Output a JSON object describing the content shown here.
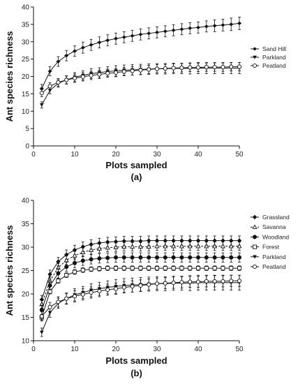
{
  "chart_data": [
    {
      "type": "line",
      "panel_label": "(a)",
      "xlabel": "Plots sampled",
      "ylabel": "Ant species richness",
      "xlim": [
        0,
        50
      ],
      "ylim": [
        0,
        40
      ],
      "xticks": [
        0,
        10,
        20,
        30,
        40,
        50
      ],
      "yticks": [
        0,
        5,
        10,
        15,
        20,
        25,
        30,
        35,
        40
      ],
      "grid": false,
      "legend_position": "right",
      "x": [
        2,
        4,
        6,
        8,
        10,
        12,
        14,
        16,
        18,
        20,
        22,
        24,
        26,
        28,
        30,
        32,
        34,
        36,
        38,
        40,
        42,
        44,
        46,
        48,
        50
      ],
      "series": [
        {
          "name": "Sand Hill",
          "marker": "star",
          "dash": "solid",
          "values": [
            16.5,
            21.5,
            24.3,
            26.0,
            27.3,
            28.3,
            29.1,
            29.8,
            30.4,
            30.9,
            31.3,
            31.7,
            32.1,
            32.4,
            32.7,
            33.0,
            33.3,
            33.6,
            33.9,
            34.1,
            34.4,
            34.6,
            34.8,
            35.0,
            35.3
          ],
          "err": [
            1.2,
            1.3,
            1.4,
            1.5,
            1.5,
            1.6,
            1.6,
            1.6,
            1.6,
            1.6,
            1.6,
            1.6,
            1.6,
            1.6,
            1.6,
            1.6,
            1.6,
            1.6,
            1.6,
            1.6,
            1.6,
            1.7,
            1.7,
            1.8,
            1.8
          ]
        },
        {
          "name": "Parkland",
          "marker": "triangle-down",
          "dash": "solid",
          "values": [
            11.8,
            16.0,
            18.0,
            19.0,
            19.8,
            20.3,
            20.8,
            21.1,
            21.4,
            21.6,
            21.8,
            21.9,
            22.0,
            22.1,
            22.2,
            22.2,
            22.3,
            22.3,
            22.3,
            22.4,
            22.4,
            22.4,
            22.4,
            22.4,
            22.4
          ],
          "err": [
            0.9,
            1.0,
            1.1,
            1.2,
            1.3,
            1.3,
            1.4,
            1.4,
            1.4,
            1.5,
            1.5,
            1.5,
            1.5,
            1.5,
            1.5,
            1.5,
            1.5,
            1.5,
            1.6,
            1.6,
            1.6,
            1.6,
            1.6,
            1.6,
            1.6
          ]
        },
        {
          "name": "Peatland",
          "marker": "circle-open",
          "dash": "solid",
          "values": [
            15.2,
            17.2,
            18.3,
            19.0,
            19.5,
            19.9,
            20.3,
            20.6,
            20.9,
            21.1,
            21.4,
            21.6,
            21.8,
            22.0,
            22.2,
            22.3,
            22.4,
            22.5,
            22.6,
            22.6,
            22.7,
            22.7,
            22.7,
            22.8,
            22.8
          ],
          "err": [
            1.0,
            1.0,
            1.1,
            1.1,
            1.2,
            1.2,
            1.2,
            1.2,
            1.2,
            1.2,
            1.2,
            1.2,
            1.2,
            1.2,
            1.2,
            1.2,
            1.2,
            1.2,
            1.2,
            1.2,
            1.2,
            1.2,
            1.2,
            1.2,
            1.2
          ]
        }
      ]
    },
    {
      "type": "line",
      "panel_label": "(b)",
      "xlabel": "Plots sampled",
      "ylabel": "Ant species richness",
      "xlim": [
        0,
        50
      ],
      "ylim": [
        10,
        40
      ],
      "xticks": [
        0,
        10,
        20,
        30,
        40,
        50
      ],
      "yticks": [
        10,
        15,
        20,
        25,
        30,
        35,
        40
      ],
      "grid": false,
      "legend_position": "right",
      "x": [
        2,
        4,
        6,
        8,
        10,
        12,
        14,
        16,
        18,
        20,
        22,
        24,
        26,
        28,
        30,
        32,
        34,
        36,
        38,
        40,
        42,
        44,
        46,
        48,
        50
      ],
      "series": [
        {
          "name": "Grassland",
          "marker": "diamond",
          "dash": "solid",
          "values": [
            18.8,
            24.2,
            26.9,
            28.4,
            29.4,
            30.1,
            30.6,
            30.9,
            31.1,
            31.2,
            31.3,
            31.3,
            31.3,
            31.4,
            31.4,
            31.4,
            31.4,
            31.4,
            31.4,
            31.4,
            31.4,
            31.4,
            31.4,
            31.4,
            31.4
          ],
          "err": [
            0.9,
            0.9,
            0.9,
            1.0,
            1.0,
            1.0,
            1.0,
            1.0,
            1.0,
            1.0,
            1.0,
            1.0,
            1.0,
            1.0,
            1.0,
            1.0,
            1.0,
            1.0,
            1.0,
            1.0,
            1.0,
            1.0,
            1.0,
            1.0,
            1.0
          ]
        },
        {
          "name": "Savanna",
          "marker": "triangle-open",
          "dash": "dashed",
          "values": [
            17.8,
            22.8,
            25.6,
            27.2,
            28.2,
            28.9,
            29.4,
            29.7,
            29.9,
            30.0,
            30.1,
            30.1,
            30.1,
            30.1,
            30.2,
            30.2,
            30.2,
            30.2,
            30.2,
            30.2,
            30.2,
            30.2,
            30.2,
            30.2,
            30.2
          ],
          "err": [
            0.9,
            0.9,
            0.9,
            0.9,
            0.9,
            0.9,
            0.9,
            0.9,
            0.9,
            0.9,
            0.9,
            0.9,
            0.9,
            0.9,
            0.9,
            0.9,
            0.9,
            0.9,
            0.9,
            0.9,
            0.9,
            0.9,
            0.9,
            0.9,
            0.9
          ]
        },
        {
          "name": "Woodland",
          "marker": "circle-filled",
          "dash": "solid",
          "values": [
            16.6,
            21.8,
            24.4,
            25.8,
            26.6,
            27.1,
            27.4,
            27.6,
            27.7,
            27.8,
            27.8,
            27.8,
            27.8,
            27.8,
            27.8,
            27.8,
            27.8,
            27.8,
            27.8,
            27.8,
            27.8,
            27.8,
            27.8,
            27.8,
            27.8
          ],
          "err": [
            1.0,
            1.0,
            1.0,
            1.0,
            1.0,
            1.0,
            1.0,
            1.0,
            1.0,
            1.0,
            1.0,
            1.0,
            1.0,
            1.0,
            1.0,
            1.0,
            1.0,
            1.0,
            1.0,
            1.0,
            1.0,
            1.0,
            1.0,
            1.0,
            1.0
          ]
        },
        {
          "name": "Forest",
          "marker": "square-open",
          "dash": "solid",
          "values": [
            15.0,
            20.5,
            22.8,
            24.0,
            24.7,
            25.1,
            25.3,
            25.4,
            25.5,
            25.5,
            25.5,
            25.5,
            25.5,
            25.5,
            25.5,
            25.5,
            25.5,
            25.5,
            25.5,
            25.5,
            25.5,
            25.5,
            25.5,
            25.5,
            25.5
          ],
          "err": [
            0.6,
            0.5,
            0.5,
            0.5,
            0.5,
            0.5,
            0.5,
            0.5,
            0.5,
            0.5,
            0.5,
            0.5,
            0.5,
            0.5,
            0.5,
            0.5,
            0.5,
            0.5,
            0.5,
            0.5,
            0.5,
            0.5,
            0.5,
            0.5,
            0.5
          ]
        },
        {
          "name": "Parkland",
          "marker": "triangle-down",
          "dash": "solid",
          "values": [
            11.8,
            16.0,
            18.0,
            19.0,
            19.8,
            20.3,
            20.8,
            21.1,
            21.4,
            21.6,
            21.8,
            21.9,
            22.0,
            22.1,
            22.2,
            22.2,
            22.3,
            22.3,
            22.3,
            22.4,
            22.4,
            22.4,
            22.4,
            22.4,
            22.4
          ],
          "err": [
            0.9,
            1.0,
            1.1,
            1.2,
            1.3,
            1.3,
            1.4,
            1.4,
            1.4,
            1.5,
            1.5,
            1.5,
            1.5,
            1.5,
            1.5,
            1.5,
            1.5,
            1.5,
            1.6,
            1.6,
            1.6,
            1.6,
            1.6,
            1.6,
            1.6
          ]
        },
        {
          "name": "Peatland",
          "marker": "circle-open",
          "dash": "solid",
          "values": [
            15.2,
            17.2,
            18.3,
            19.0,
            19.5,
            19.9,
            20.3,
            20.6,
            20.9,
            21.1,
            21.4,
            21.6,
            21.8,
            22.0,
            22.2,
            22.3,
            22.4,
            22.5,
            22.6,
            22.6,
            22.7,
            22.7,
            22.7,
            22.8,
            22.8
          ],
          "err": [
            1.0,
            1.0,
            1.1,
            1.1,
            1.2,
            1.2,
            1.2,
            1.2,
            1.2,
            1.2,
            1.2,
            1.2,
            1.2,
            1.2,
            1.2,
            1.2,
            1.2,
            1.2,
            1.2,
            1.2,
            1.2,
            1.2,
            1.2,
            1.2,
            1.2
          ]
        }
      ]
    }
  ]
}
